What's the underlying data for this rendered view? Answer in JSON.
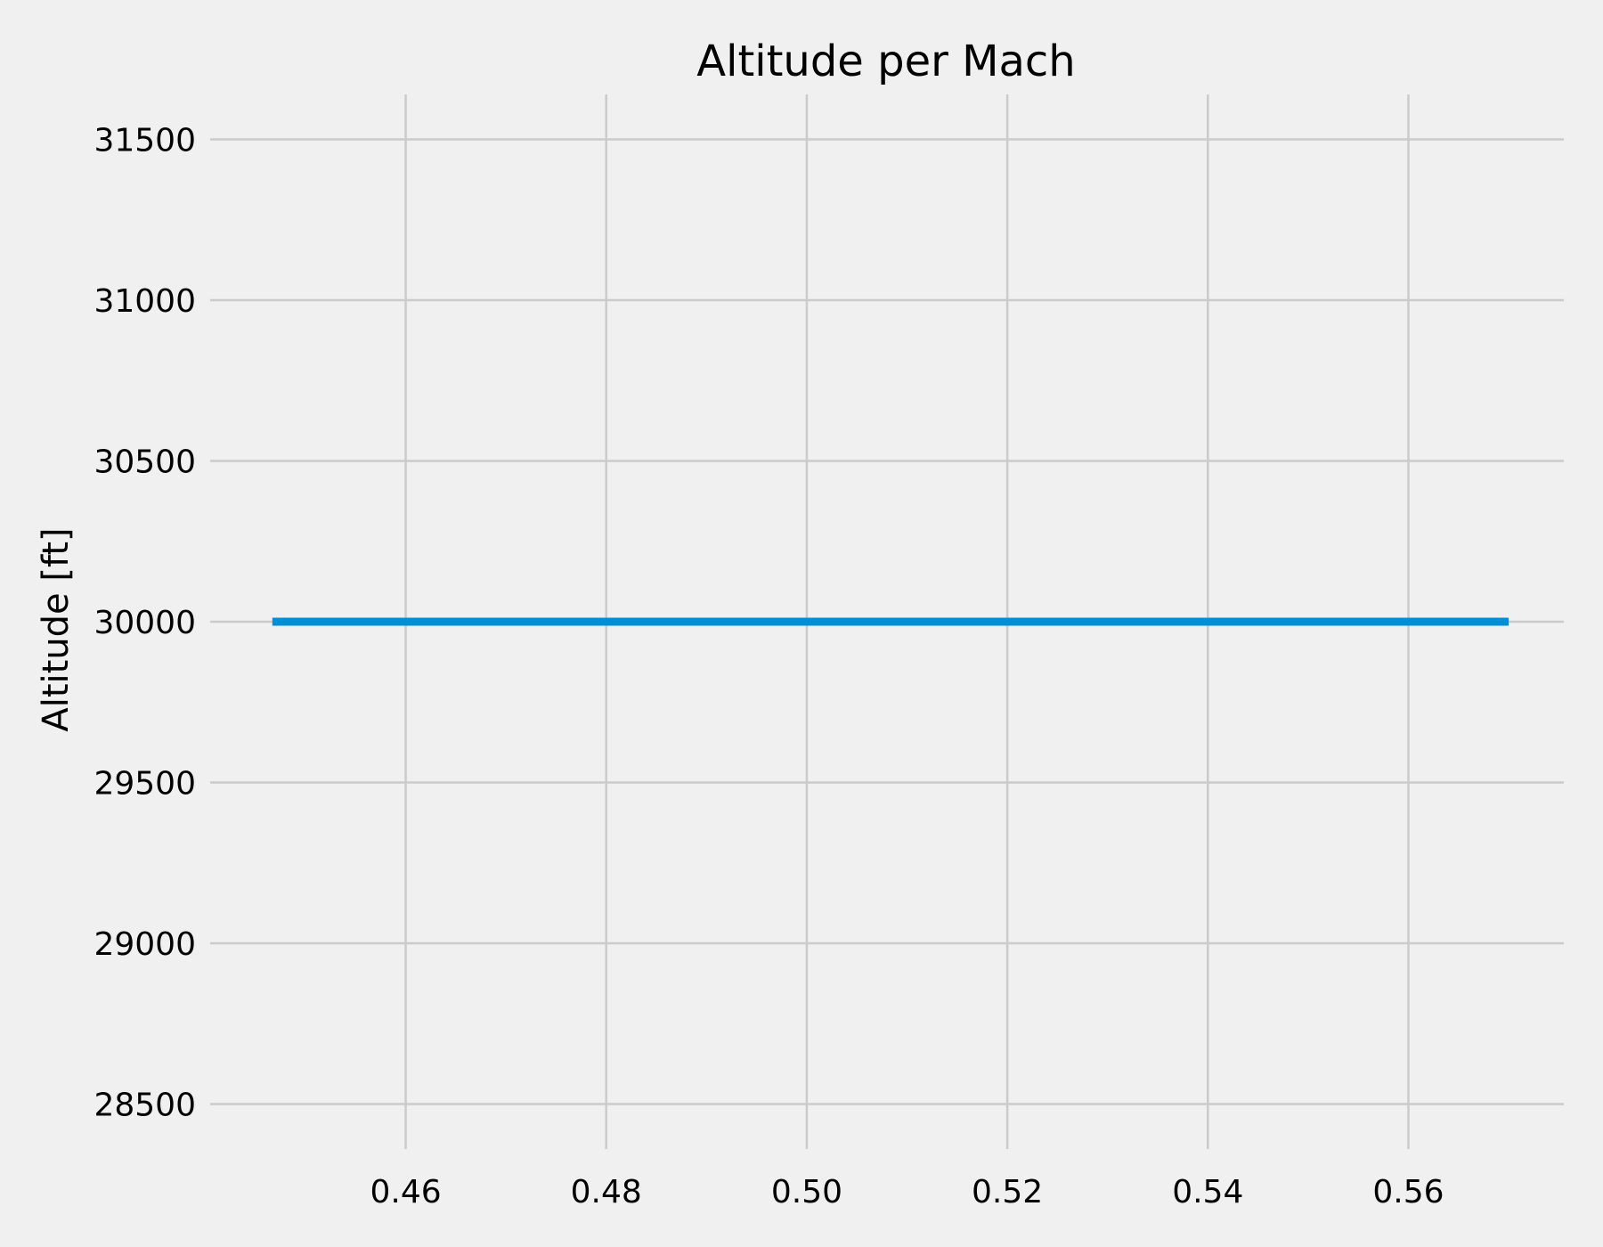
{
  "chart_data": {
    "type": "line",
    "title": "Altitude per Mach",
    "xlabel": "",
    "ylabel": "Altitude [ft]",
    "xlim": [
      0.4405,
      0.5755
    ],
    "ylim": [
      28360,
      31640
    ],
    "x_ticks": [
      "0.46",
      "0.48",
      "0.50",
      "0.52",
      "0.54",
      "0.56"
    ],
    "y_ticks": [
      "28500",
      "29000",
      "29500",
      "30000",
      "30500",
      "31000",
      "31500"
    ],
    "grid": true,
    "legend": "none",
    "series": [
      {
        "color": "#008fd5",
        "x": [
          0.4467,
          0.57
        ],
        "y": [
          30000,
          30000
        ]
      }
    ]
  },
  "colors": {
    "background": "#f0f0f0",
    "grid": "#cbcbcb",
    "line": "#008fd5"
  }
}
